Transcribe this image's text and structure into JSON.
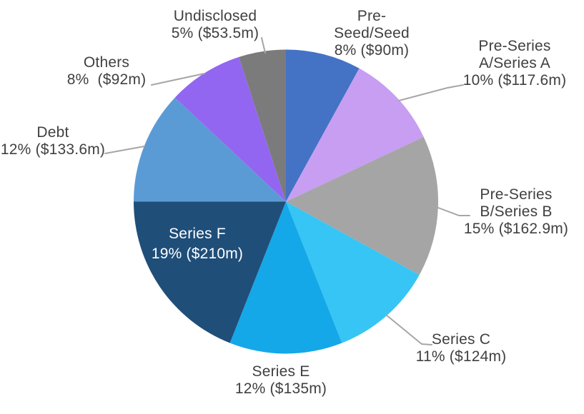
{
  "chart_data": {
    "type": "pie",
    "title": "",
    "start_angle_deg": 0,
    "direction": "clockwise",
    "background": "#FFFFFF",
    "label_text_color": "#404040",
    "inside_label_text_color": "#FFFFFF",
    "leader_line_color": "#A6A6A6",
    "slices": [
      {
        "label": "Pre-Seed/Seed",
        "percent": 8,
        "amount": "$90m",
        "amount_m": 90,
        "color": "#4472C4",
        "label_inside": false,
        "leader": false,
        "display_lines": [
          "Pre-",
          "Seed/Seed",
          "8% ($90m)"
        ]
      },
      {
        "label": "Pre-Series A/Series A",
        "percent": 10,
        "amount": "$117.6m",
        "amount_m": 117.6,
        "color": "#C79EF2",
        "label_inside": false,
        "leader": true,
        "display_lines": [
          "Pre-Series",
          "A/Series A",
          "10% ($117.6m)"
        ]
      },
      {
        "label": "Pre-Series B/Series B",
        "percent": 15,
        "amount": "$162.9m",
        "amount_m": 162.9,
        "color": "#A5A5A5",
        "label_inside": false,
        "leader": true,
        "display_lines": [
          "Pre-Series",
          "B/Series B",
          "15% ($162.9m)"
        ]
      },
      {
        "label": "Series C",
        "percent": 11,
        "amount": "$124m",
        "amount_m": 124,
        "color": "#36C5F4",
        "label_inside": false,
        "leader": true,
        "display_lines": [
          "Series C",
          "11% ($124m)"
        ]
      },
      {
        "label": "Series E",
        "percent": 12,
        "amount": "$135m",
        "amount_m": 135,
        "color": "#14A8E8",
        "label_inside": false,
        "leader": false,
        "display_lines": [
          "Series E",
          "12% ($135m)"
        ]
      },
      {
        "label": "Series F",
        "percent": 19,
        "amount": "$210m",
        "amount_m": 210,
        "color": "#1F4E79",
        "label_inside": true,
        "leader": false,
        "display_lines": [
          "Series F",
          "19% ($210m)"
        ]
      },
      {
        "label": "Debt",
        "percent": 12,
        "amount": "$133.6m",
        "amount_m": 133.6,
        "color": "#5B9BD5",
        "label_inside": false,
        "leader": true,
        "display_lines": [
          "Debt",
          "12% ($133.6m)"
        ]
      },
      {
        "label": "Others",
        "percent": 8,
        "amount": "$92m",
        "amount_m": 92,
        "color": "#9266F0",
        "label_inside": false,
        "leader": true,
        "display_lines": [
          "Others",
          "8%  ($92m)"
        ]
      },
      {
        "label": "Undisclosed",
        "percent": 5,
        "amount": "$53.5m",
        "amount_m": 53.5,
        "color": "#7B7B7B",
        "label_inside": false,
        "leader": true,
        "display_lines": [
          "Undisclosed",
          "5% ($53.5m)"
        ]
      }
    ]
  }
}
